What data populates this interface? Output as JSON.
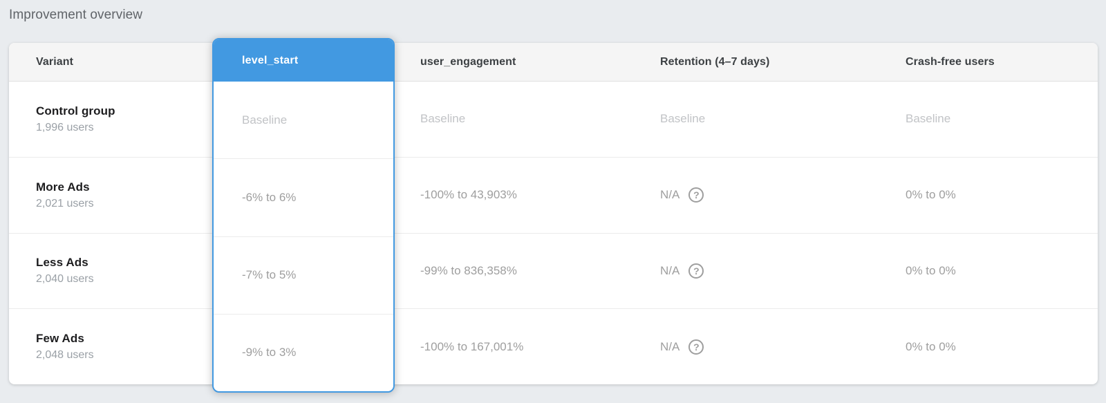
{
  "page": {
    "title": "Improvement overview"
  },
  "table": {
    "columns": [
      {
        "id": "variant",
        "label": "Variant",
        "highlighted": false
      },
      {
        "id": "level_start",
        "label": "level_start",
        "highlighted": true
      },
      {
        "id": "user_engagement",
        "label": "user_engagement",
        "highlighted": false
      },
      {
        "id": "retention",
        "label": "Retention (4–7 days)",
        "highlighted": false
      },
      {
        "id": "crash_free",
        "label": "Crash-free users",
        "highlighted": false
      }
    ],
    "rows": [
      {
        "variant": "Control group",
        "users": "1,996 users",
        "level_start": "Baseline",
        "user_engagement": "Baseline",
        "retention": "Baseline",
        "crash_free": "Baseline"
      },
      {
        "variant": "More Ads",
        "users": "2,021 users",
        "level_start": "-6% to 6%",
        "user_engagement": "-100% to 43,903%",
        "retention": "N/A",
        "crash_free": "0% to 0%"
      },
      {
        "variant": "Less Ads",
        "users": "2,040 users",
        "level_start": "-7% to 5%",
        "user_engagement": "-99% to 836,358%",
        "retention": "N/A",
        "crash_free": "0% to 0%"
      },
      {
        "variant": "Few Ads",
        "users": "2,048 users",
        "level_start": "-9% to 3%",
        "user_engagement": "-100% to 167,001%",
        "retention": "N/A",
        "crash_free": "0% to 0%"
      }
    ]
  },
  "icons": {
    "help": "?"
  },
  "colors": {
    "accent_blue": "#4299e1",
    "page_background": "#e9ecef",
    "header_background": "#f5f5f5",
    "header_text": "#3c4043",
    "variant_text": "#1d1d1f",
    "muted_text": "#9e9e9e",
    "baseline_text": "#c1c3c6"
  }
}
